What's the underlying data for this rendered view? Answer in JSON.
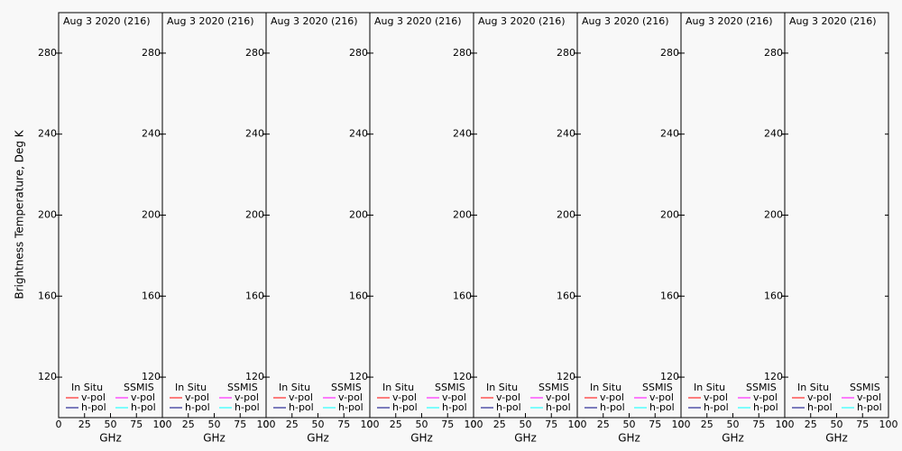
{
  "chart_data": [
    {
      "type": "line",
      "title": "Aug 3 2020 (216)",
      "ylabel": "Brightness Temperature, Deg K",
      "xlabel": "GHz",
      "xlim": [
        0,
        100
      ],
      "xticks": [
        0,
        25,
        50,
        75,
        100
      ],
      "ylim": [
        100,
        300
      ],
      "yticks": [
        120,
        160,
        200,
        240,
        280
      ],
      "legend_titles": [
        "In Situ",
        "SSMIS"
      ],
      "x": [],
      "series": [
        {
          "name": "v-pol",
          "color": "#ff0000",
          "values": []
        },
        {
          "name": "h-pol",
          "color": "#000080",
          "values": []
        },
        {
          "name": "v-pol",
          "color": "#ff00ff",
          "values": []
        },
        {
          "name": "h-pol",
          "color": "#00ffff",
          "values": []
        }
      ]
    },
    {
      "type": "line",
      "title": "Aug 3 2020 (216)",
      "xlabel": "GHz",
      "xlim": [
        0,
        100
      ],
      "xticks": [
        0,
        25,
        50,
        75,
        100
      ],
      "ylim": [
        100,
        300
      ],
      "yticks": [
        120,
        160,
        200,
        240,
        280
      ],
      "legend_titles": [
        "In Situ",
        "SSMIS"
      ],
      "x": [],
      "series": [
        {
          "name": "v-pol",
          "color": "#ff0000",
          "values": []
        },
        {
          "name": "h-pol",
          "color": "#000080",
          "values": []
        },
        {
          "name": "v-pol",
          "color": "#ff00ff",
          "values": []
        },
        {
          "name": "h-pol",
          "color": "#00ffff",
          "values": []
        }
      ]
    },
    {
      "type": "line",
      "title": "Aug 3 2020 (216)",
      "xlabel": "GHz",
      "xlim": [
        0,
        100
      ],
      "xticks": [
        0,
        25,
        50,
        75,
        100
      ],
      "ylim": [
        100,
        300
      ],
      "yticks": [
        120,
        160,
        200,
        240,
        280
      ],
      "legend_titles": [
        "In Situ",
        "SSMIS"
      ],
      "x": [],
      "series": [
        {
          "name": "v-pol",
          "color": "#ff0000",
          "values": []
        },
        {
          "name": "h-pol",
          "color": "#000080",
          "values": []
        },
        {
          "name": "v-pol",
          "color": "#ff00ff",
          "values": []
        },
        {
          "name": "h-pol",
          "color": "#00ffff",
          "values": []
        }
      ]
    },
    {
      "type": "line",
      "title": "Aug 3 2020 (216)",
      "xlabel": "GHz",
      "xlim": [
        0,
        100
      ],
      "xticks": [
        0,
        25,
        50,
        75,
        100
      ],
      "ylim": [
        100,
        300
      ],
      "yticks": [
        120,
        160,
        200,
        240,
        280
      ],
      "legend_titles": [
        "In Situ",
        "SSMIS"
      ],
      "x": [],
      "series": [
        {
          "name": "v-pol",
          "color": "#ff0000",
          "values": []
        },
        {
          "name": "h-pol",
          "color": "#000080",
          "values": []
        },
        {
          "name": "v-pol",
          "color": "#ff00ff",
          "values": []
        },
        {
          "name": "h-pol",
          "color": "#00ffff",
          "values": []
        }
      ]
    },
    {
      "type": "line",
      "title": "Aug 3 2020 (216)",
      "xlabel": "GHz",
      "xlim": [
        0,
        100
      ],
      "xticks": [
        0,
        25,
        50,
        75,
        100
      ],
      "ylim": [
        100,
        300
      ],
      "yticks": [
        120,
        160,
        200,
        240,
        280
      ],
      "legend_titles": [
        "In Situ",
        "SSMIS"
      ],
      "x": [],
      "series": [
        {
          "name": "v-pol",
          "color": "#ff0000",
          "values": []
        },
        {
          "name": "h-pol",
          "color": "#000080",
          "values": []
        },
        {
          "name": "v-pol",
          "color": "#ff00ff",
          "values": []
        },
        {
          "name": "h-pol",
          "color": "#00ffff",
          "values": []
        }
      ]
    },
    {
      "type": "line",
      "title": "Aug 3 2020 (216)",
      "xlabel": "GHz",
      "xlim": [
        0,
        100
      ],
      "xticks": [
        0,
        25,
        50,
        75,
        100
      ],
      "ylim": [
        100,
        300
      ],
      "yticks": [
        120,
        160,
        200,
        240,
        280
      ],
      "legend_titles": [
        "In Situ",
        "SSMIS"
      ],
      "x": [],
      "series": [
        {
          "name": "v-pol",
          "color": "#ff0000",
          "values": []
        },
        {
          "name": "h-pol",
          "color": "#000080",
          "values": []
        },
        {
          "name": "v-pol",
          "color": "#ff00ff",
          "values": []
        },
        {
          "name": "h-pol",
          "color": "#00ffff",
          "values": []
        }
      ]
    },
    {
      "type": "line",
      "title": "Aug 3 2020 (216)",
      "xlabel": "GHz",
      "xlim": [
        0,
        100
      ],
      "xticks": [
        0,
        25,
        50,
        75,
        100
      ],
      "ylim": [
        100,
        300
      ],
      "yticks": [
        120,
        160,
        200,
        240,
        280
      ],
      "legend_titles": [
        "In Situ",
        "SSMIS"
      ],
      "x": [],
      "series": [
        {
          "name": "v-pol",
          "color": "#ff0000",
          "values": []
        },
        {
          "name": "h-pol",
          "color": "#000080",
          "values": []
        },
        {
          "name": "v-pol",
          "color": "#ff00ff",
          "values": []
        },
        {
          "name": "h-pol",
          "color": "#00ffff",
          "values": []
        }
      ]
    },
    {
      "type": "line",
      "title": "Aug 3 2020 (216)",
      "xlabel": "GHz",
      "xlim": [
        0,
        100
      ],
      "xticks": [
        0,
        25,
        50,
        75,
        100
      ],
      "ylim": [
        100,
        300
      ],
      "yticks": [
        120,
        160,
        200,
        240,
        280
      ],
      "legend_titles": [
        "In Situ",
        "SSMIS"
      ],
      "x": [],
      "series": [
        {
          "name": "v-pol",
          "color": "#ff0000",
          "values": []
        },
        {
          "name": "h-pol",
          "color": "#000080",
          "values": []
        },
        {
          "name": "v-pol",
          "color": "#ff00ff",
          "values": []
        },
        {
          "name": "h-pol",
          "color": "#00ffff",
          "values": []
        }
      ]
    }
  ]
}
